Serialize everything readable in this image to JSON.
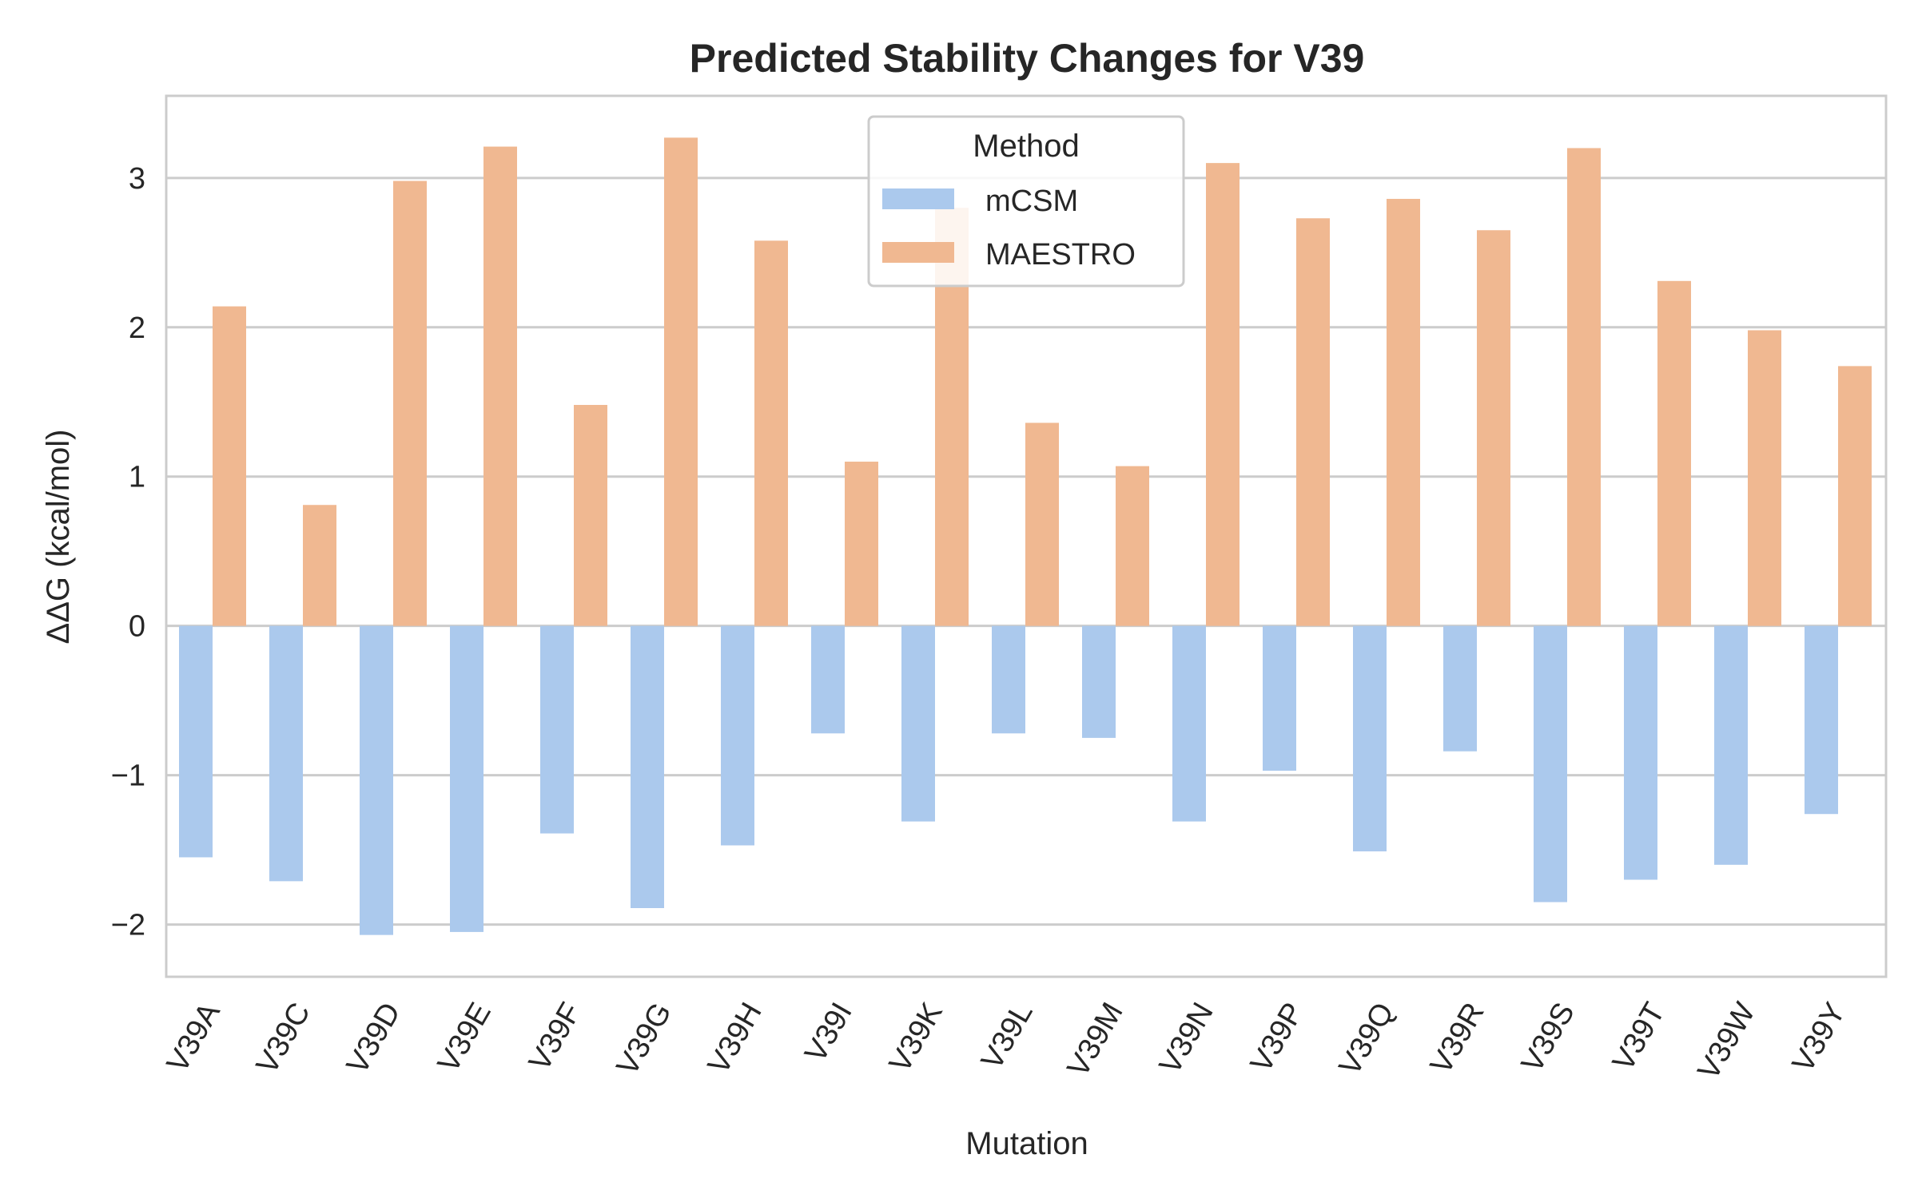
{
  "chart_data": {
    "type": "bar",
    "title": "Predicted Stability Changes for V39",
    "xlabel": "Mutation",
    "ylabel": "ΔΔG (kcal/mol)",
    "ylim": [
      -2.35,
      3.55
    ],
    "yticks": [
      -2,
      -1,
      0,
      1,
      2,
      3
    ],
    "ytick_labels": [
      "−2",
      "−1",
      "0",
      "1",
      "2",
      "3"
    ],
    "grid": true,
    "legend": {
      "title": "Method",
      "placement": "upper-center"
    },
    "categories": [
      "V39A",
      "V39C",
      "V39D",
      "V39E",
      "V39F",
      "V39G",
      "V39H",
      "V39I",
      "V39K",
      "V39L",
      "V39M",
      "V39N",
      "V39P",
      "V39Q",
      "V39R",
      "V39S",
      "V39T",
      "V39W",
      "V39Y"
    ],
    "series": [
      {
        "name": "mCSM",
        "color": "#abc9ed",
        "values": [
          -1.55,
          -1.71,
          -2.07,
          -2.05,
          -1.39,
          -1.89,
          -1.47,
          -0.72,
          -1.31,
          -0.72,
          -0.75,
          -1.31,
          -0.97,
          -1.51,
          -0.84,
          -1.85,
          -1.7,
          -1.6,
          -1.26
        ]
      },
      {
        "name": "MAESTRO",
        "color": "#f0b891",
        "values": [
          2.14,
          0.81,
          2.98,
          3.21,
          1.48,
          3.27,
          2.58,
          1.1,
          2.8,
          1.36,
          1.07,
          3.1,
          2.73,
          2.86,
          2.65,
          3.2,
          2.31,
          1.98,
          1.74
        ]
      }
    ]
  }
}
